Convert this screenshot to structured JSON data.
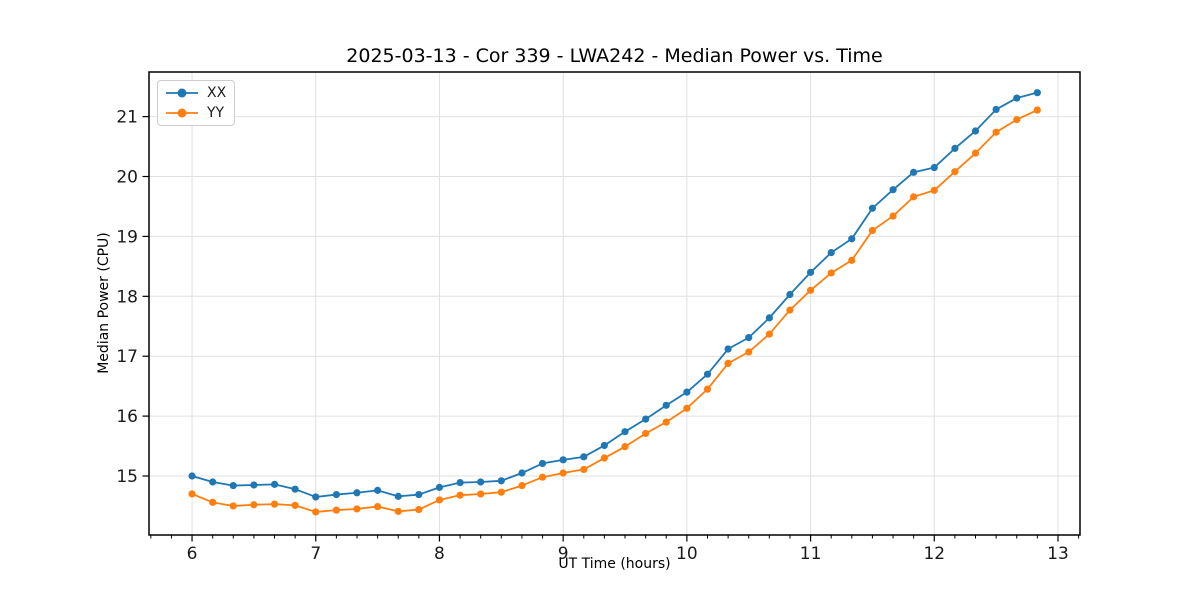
{
  "title": "2025-03-13 - Cor 339 - LWA242 - Median Power vs. Time",
  "chart_data": {
    "type": "line",
    "title": "2025-03-13 - Cor 339 - LWA242 - Median Power vs. Time",
    "xlabel": "UT Time (hours)",
    "ylabel": "Median Power (CPU)",
    "xlim": [
      5.652,
      13.178
    ],
    "ylim": [
      14.015,
      21.745
    ],
    "x_ticks": [
      6,
      7,
      8,
      9,
      10,
      11,
      12,
      13
    ],
    "y_ticks": [
      15,
      16,
      17,
      18,
      19,
      20,
      21
    ],
    "x_minor_step_hours": 0.1667,
    "grid": true,
    "grid_color": "#e0e0e0",
    "spine_color": "#000000",
    "legend_position": "upper-left",
    "x": [
      6.0,
      6.167,
      6.333,
      6.5,
      6.667,
      6.833,
      7.0,
      7.167,
      7.333,
      7.5,
      7.667,
      7.833,
      8.0,
      8.167,
      8.333,
      8.5,
      8.667,
      8.833,
      9.0,
      9.167,
      9.333,
      9.5,
      9.667,
      9.833,
      10.0,
      10.167,
      10.333,
      10.5,
      10.667,
      10.833,
      11.0,
      11.167,
      11.333,
      11.5,
      11.667,
      11.833,
      12.0,
      12.167,
      12.333,
      12.5,
      12.667,
      12.833
    ],
    "series": [
      {
        "name": "XX",
        "color": "#1f77b4",
        "values": [
          15.0,
          14.9,
          14.84,
          14.85,
          14.86,
          14.78,
          14.65,
          14.69,
          14.72,
          14.76,
          14.66,
          14.69,
          14.81,
          14.89,
          14.9,
          14.92,
          15.05,
          15.21,
          15.27,
          15.32,
          15.51,
          15.74,
          15.95,
          16.18,
          16.4,
          16.7,
          17.12,
          17.31,
          17.64,
          18.03,
          18.4,
          18.73,
          18.96,
          19.47,
          19.78,
          20.07,
          20.15,
          20.47,
          20.76,
          21.12,
          21.31,
          21.4
        ]
      },
      {
        "name": "YY",
        "color": "#ff7f0e",
        "values": [
          14.7,
          14.56,
          14.5,
          14.52,
          14.53,
          14.51,
          14.4,
          14.43,
          14.45,
          14.49,
          14.41,
          14.44,
          14.6,
          14.68,
          14.7,
          14.73,
          14.84,
          14.98,
          15.05,
          15.11,
          15.3,
          15.49,
          15.71,
          15.9,
          16.13,
          16.45,
          16.88,
          17.07,
          17.37,
          17.77,
          18.1,
          18.39,
          18.6,
          19.1,
          19.34,
          19.66,
          19.77,
          20.08,
          20.39,
          20.74,
          20.95,
          21.11
        ]
      }
    ]
  }
}
